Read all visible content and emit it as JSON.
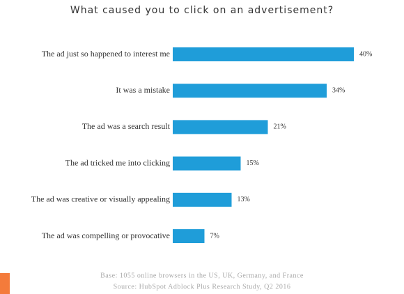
{
  "chart_data": {
    "type": "bar",
    "orientation": "horizontal",
    "title": "What caused you to click on an advertisement?",
    "categories": [
      "The ad just so happened to interest me",
      "It was a mistake",
      "The ad was a search result",
      "The ad tricked me into clicking",
      "The ad was creative or visually appealing",
      "The ad was compelling or provocative"
    ],
    "values": [
      40,
      34,
      21,
      15,
      13,
      7
    ],
    "value_labels": [
      "40%",
      "34%",
      "21%",
      "15%",
      "13%",
      "7%"
    ],
    "color": "#1f9dd9",
    "notes": [
      "Base: 1055 online browsers in the US, UK, Germany, and France",
      "Source: HubSpot Adblock Plus Research Study, Q2 2016"
    ]
  }
}
